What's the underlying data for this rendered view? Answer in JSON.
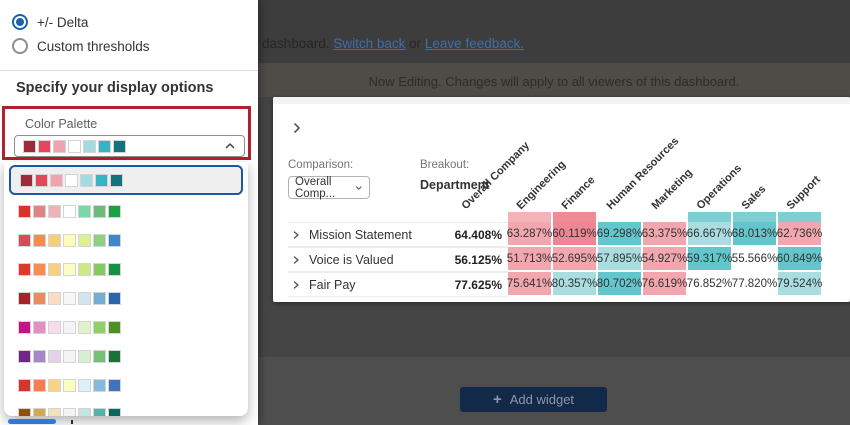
{
  "panel": {
    "radios": [
      {
        "label": "+/- Delta",
        "selected": true
      },
      {
        "label": "Custom thresholds",
        "selected": false
      }
    ],
    "section_title": "Specify your display options",
    "color_palette_label": "Color Palette",
    "selected_palette_index": 0,
    "palette_options": [
      [
        "#9c2b3b",
        "#e4475c",
        "#f0a3ae",
        "#ffffff",
        "#a5dbde",
        "#35b5bf",
        "#13727c"
      ],
      [
        "#d93226",
        "#dd8585",
        "#eeb3b5",
        "#ffffff",
        "#7bd6a8",
        "#6fba77",
        "#1d9f45"
      ],
      [
        "#d84a56",
        "#f58a52",
        "#f5ce7e",
        "#fdfdb9",
        "#ddf094",
        "#8fce83",
        "#3f87c6"
      ],
      [
        "#dc3b2a",
        "#f68e51",
        "#f6d083",
        "#fbfcc6",
        "#cfe985",
        "#86c95e",
        "#169143"
      ],
      [
        "#a82229",
        "#ee8a62",
        "#fbdcc5",
        "#f7f7f7",
        "#d2e5f0",
        "#74aed1",
        "#2b66ac"
      ],
      [
        "#c21587",
        "#e48fc3",
        "#f8dcec",
        "#f4f4f4",
        "#e2f2cd",
        "#8fd163",
        "#4e9121"
      ],
      [
        "#6f2688",
        "#a786c6",
        "#e3d2e8",
        "#f4f4f4",
        "#d7efd2",
        "#76c078",
        "#1d7038"
      ],
      [
        "#d8352a",
        "#f57d4f",
        "#f8d586",
        "#fdfdc0",
        "#def0f7",
        "#86b9dc",
        "#4472b8"
      ],
      [
        "#8e5209",
        "#ceab54",
        "#eee3b9",
        "#f3f3f3",
        "#bfe6e0",
        "#54b2a8",
        "#0a655c"
      ]
    ]
  },
  "topbar": {
    "prefix": "dashboard.",
    "link_switch_back": "Switch back",
    "connector": "or",
    "link_leave_feedback": "Leave feedback."
  },
  "banner": {
    "text": "Now Editing. Changes will apply to all viewers of this dashboard."
  },
  "widget": {
    "comparison_label": "Comparison:",
    "comparison_value": "Overall Comp...",
    "breakout_label": "Breakout:",
    "breakout_value": "Department",
    "columns": [
      "Overall Company",
      "Engineering",
      "Finance",
      "Human Resources",
      "Marketing",
      "Operations",
      "Sales",
      "Support"
    ],
    "cell_colors": {
      "pink": "#f2a6ae",
      "dark_pink": "#ee8793",
      "teal": "#63c6cc",
      "light_teal": "#a9dde0",
      "white": "#ffffff",
      "band_pink": "#f4b3ba",
      "band_dark_pink": "#ef8b95",
      "band_teal": "#7dcfd4",
      "none": "transparent"
    },
    "band_colors": [
      "none",
      "band_pink",
      "band_dark_pink",
      "none",
      "none",
      "band_teal",
      "band_teal",
      "band_teal"
    ],
    "rows": [
      {
        "label": "Mission Statement",
        "overall": "64.408%",
        "cells": [
          [
            "63.287%",
            "pink"
          ],
          [
            "60.119%",
            "dark_pink"
          ],
          [
            "69.298%",
            "teal"
          ],
          [
            "63.375%",
            "pink"
          ],
          [
            "66.667%",
            "light_teal"
          ],
          [
            "68.013%",
            "teal"
          ],
          [
            "62.736%",
            "pink"
          ]
        ]
      },
      {
        "label": "Voice is Valued",
        "overall": "56.125%",
        "cells": [
          [
            "51.713%",
            "pink"
          ],
          [
            "52.695%",
            "pink"
          ],
          [
            "57.895%",
            "light_teal"
          ],
          [
            "54.927%",
            "pink"
          ],
          [
            "59.317%",
            "teal"
          ],
          [
            "55.566%",
            "white"
          ],
          [
            "60.849%",
            "teal"
          ]
        ]
      },
      {
        "label": "Fair Pay",
        "overall": "77.625%",
        "cells": [
          [
            "75.641%",
            "pink"
          ],
          [
            "80.357%",
            "light_teal"
          ],
          [
            "80.702%",
            "teal"
          ],
          [
            "76.619%",
            "pink"
          ],
          [
            "76.852%",
            "white"
          ],
          [
            "77.820%",
            "white"
          ],
          [
            "79.524%",
            "light_teal"
          ]
        ]
      }
    ]
  },
  "add_widget_label": "Add widget"
}
